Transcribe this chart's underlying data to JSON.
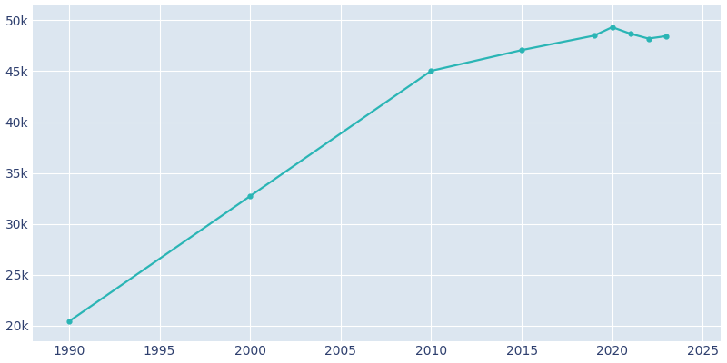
{
  "years": [
    1990,
    2000,
    2010,
    2015,
    2019,
    2020,
    2021,
    2022,
    2023
  ],
  "population": [
    20416,
    32720,
    45028,
    47071,
    48493,
    49320,
    48682,
    48200,
    48452
  ],
  "line_color": "#2ab5b5",
  "marker_color": "#2ab5b5",
  "fig_bg_color": "#ffffff",
  "plot_bg_color": "#dce6f0",
  "grid_color": "#ffffff",
  "text_color": "#2e3f6e",
  "xlim": [
    1988,
    2026
  ],
  "ylim": [
    18500,
    51500
  ],
  "xticks": [
    1990,
    1995,
    2000,
    2005,
    2010,
    2015,
    2020,
    2025
  ],
  "yticks": [
    20000,
    25000,
    30000,
    35000,
    40000,
    45000,
    50000
  ],
  "ytick_labels": [
    "20k",
    "25k",
    "30k",
    "35k",
    "40k",
    "45k",
    "50k"
  ],
  "linewidth": 1.6,
  "markersize": 3.5
}
